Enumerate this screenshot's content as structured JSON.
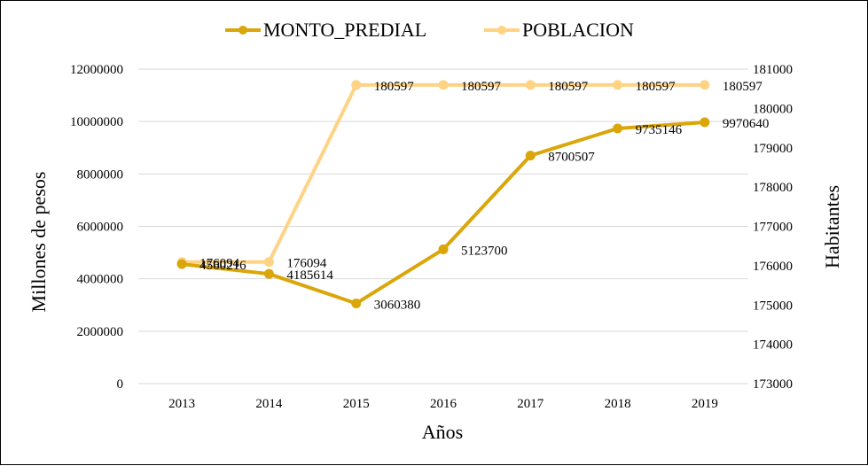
{
  "chart_data": {
    "type": "line",
    "title": "",
    "x": [
      "2013",
      "2014",
      "2015",
      "2016",
      "2017",
      "2018",
      "2019"
    ],
    "xlabel": "Años",
    "ylabel": "Millones de pesos",
    "y2label": "Habitantes",
    "ylim": [
      0,
      12000000
    ],
    "y2lim": [
      173000,
      181000
    ],
    "yticks": [
      "0",
      "2000000",
      "4000000",
      "6000000",
      "8000000",
      "10000000",
      "12000000"
    ],
    "y2ticks": [
      "173000",
      "174000",
      "175000",
      "176000",
      "177000",
      "178000",
      "179000",
      "180000",
      "181000"
    ],
    "grid": true,
    "legend_position": "top",
    "series": [
      {
        "name": "MONTO_PREDIAL",
        "axis": "left",
        "color": "#DAA60A",
        "values": [
          4560216,
          4185614,
          3060380,
          5123700,
          8700507,
          9735146,
          9970640
        ],
        "labels": [
          "4560216",
          "4185614",
          "3060380",
          "5123700",
          "8700507",
          "9735146",
          "9970640"
        ]
      },
      {
        "name": "POBLACION",
        "axis": "right",
        "color": "#FFD384",
        "values": [
          176094,
          176094,
          180597,
          180597,
          180597,
          180597,
          180597
        ],
        "labels": [
          "176094",
          "176094",
          "180597",
          "180597",
          "180597",
          "180597",
          "180597"
        ]
      }
    ]
  }
}
